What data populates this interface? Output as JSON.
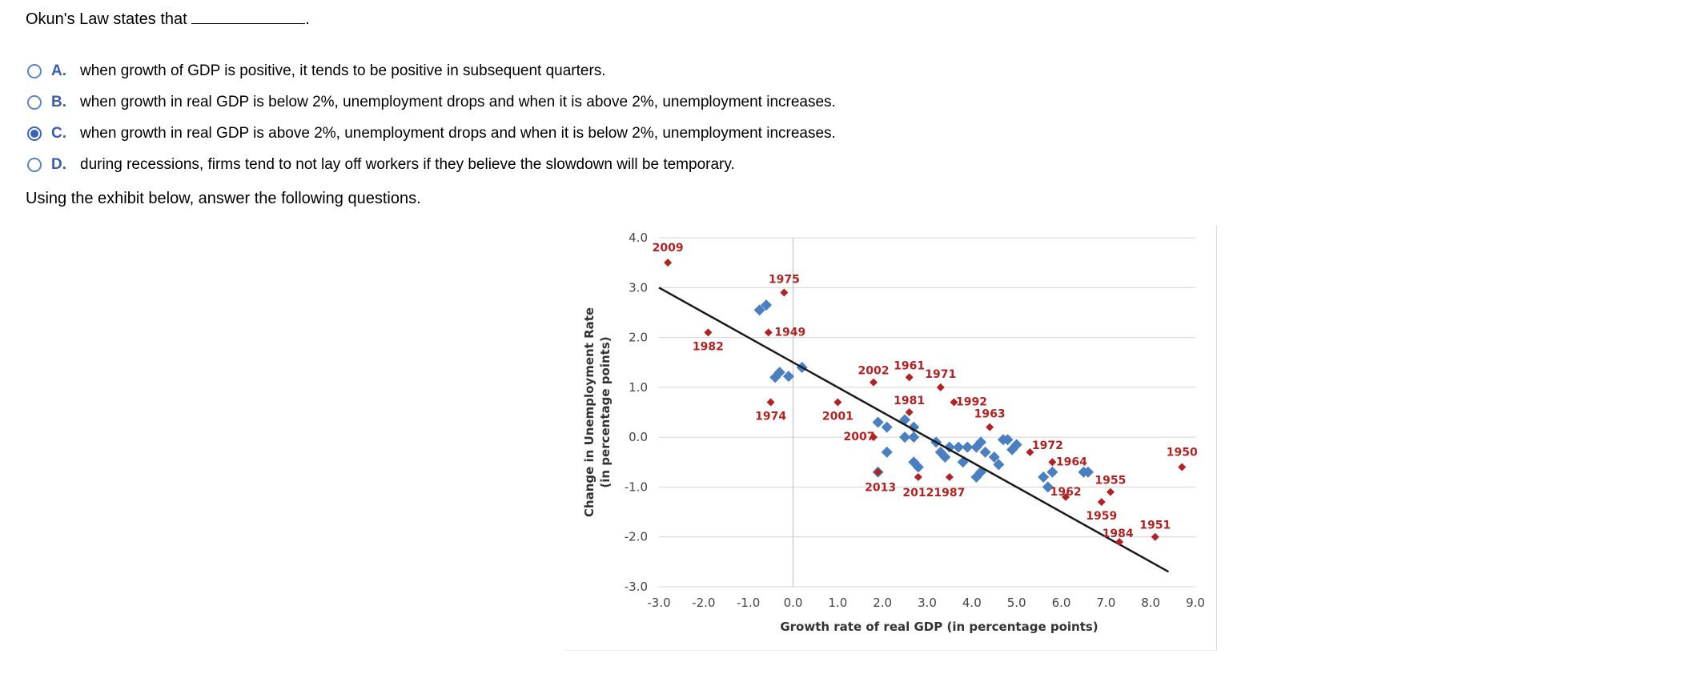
{
  "question": {
    "text": "Okun's Law states that",
    "end": "."
  },
  "options": [
    {
      "letter": "A.",
      "text": "when growth of GDP is positive, it tends to be positive in subsequent quarters.",
      "selected": false
    },
    {
      "letter": "B.",
      "text": "when growth in real GDP is below 2%, unemployment drops and when it is above 2%, unemployment increases.",
      "selected": false
    },
    {
      "letter": "C.",
      "text": "when growth in real GDP is above 2%, unemployment drops and when it is below 2%, unemployment increases.",
      "selected": true
    },
    {
      "letter": "D.",
      "text": "during recessions, firms tend to not lay off workers if they believe the slowdown will be temporary.",
      "selected": false
    }
  ],
  "instruction": "Using the exhibit below, answer the following questions.",
  "chart_data": {
    "type": "scatter",
    "xlabel": "Growth rate of real GDP (in percentage points)",
    "ylabel": [
      "Change in Unemployment Rate",
      "(in percentage points)"
    ],
    "xlim": [
      -3,
      9
    ],
    "ylim": [
      -3,
      4
    ],
    "x_ticks": [
      "-3.0",
      "-2.0",
      "-1.0",
      "0.0",
      "1.0",
      "2.0",
      "3.0",
      "4.0",
      "5.0",
      "6.0",
      "7.0",
      "8.0",
      "9.0"
    ],
    "y_ticks": [
      "4.0",
      "3.0",
      "2.0",
      "1.0",
      "0.0",
      "-1.0",
      "-2.0",
      "-3.0"
    ],
    "grid": "horizontal",
    "colors": {
      "labeled": "#b22222",
      "unlabeled": "#4a7fc1",
      "trend": "#1a1a1a"
    },
    "trend_line": [
      [
        -3.0,
        3.0
      ],
      [
        8.4,
        -2.7
      ]
    ],
    "labeled_points": [
      {
        "label": "2009",
        "x": -2.8,
        "y": 3.5
      },
      {
        "label": "1975",
        "x": -0.2,
        "y": 2.9
      },
      {
        "label": "1949",
        "x": -0.55,
        "y": 2.1
      },
      {
        "label": "1982",
        "x": -1.9,
        "y": 2.1
      },
      {
        "label": "1974",
        "x": -0.5,
        "y": 0.7
      },
      {
        "label": "2001",
        "x": 1.0,
        "y": 0.7
      },
      {
        "label": "2002",
        "x": 1.8,
        "y": 1.1
      },
      {
        "label": "1961",
        "x": 2.6,
        "y": 1.2
      },
      {
        "label": "1971",
        "x": 3.3,
        "y": 1.0
      },
      {
        "label": "1981",
        "x": 2.6,
        "y": 0.5
      },
      {
        "label": "1992",
        "x": 3.6,
        "y": 0.7
      },
      {
        "label": "1963",
        "x": 4.4,
        "y": 0.2
      },
      {
        "label": "2007",
        "x": 1.8,
        "y": 0.0
      },
      {
        "label": "2013",
        "x": 1.9,
        "y": -0.7
      },
      {
        "label": "2012",
        "x": 2.8,
        "y": -0.8
      },
      {
        "label": "1987",
        "x": 3.5,
        "y": -0.8
      },
      {
        "label": "1972",
        "x": 5.3,
        "y": -0.3
      },
      {
        "label": "1964",
        "x": 5.8,
        "y": -0.5
      },
      {
        "label": "1962",
        "x": 6.1,
        "y": -1.2
      },
      {
        "label": "1955",
        "x": 7.1,
        "y": -1.1
      },
      {
        "label": "1959",
        "x": 6.9,
        "y": -1.3
      },
      {
        "label": "1984",
        "x": 7.3,
        "y": -2.1
      },
      {
        "label": "1951",
        "x": 8.1,
        "y": -2.0
      },
      {
        "label": "1950",
        "x": 8.7,
        "y": -0.6
      }
    ],
    "unlabeled_points": [
      [
        -0.75,
        2.55
      ],
      [
        -0.6,
        2.65
      ],
      [
        -0.3,
        1.3
      ],
      [
        -0.4,
        1.2
      ],
      [
        -0.1,
        1.22
      ],
      [
        0.2,
        1.4
      ],
      [
        1.9,
        0.3
      ],
      [
        2.1,
        0.2
      ],
      [
        2.5,
        0.35
      ],
      [
        2.7,
        0.2
      ],
      [
        2.5,
        0.0
      ],
      [
        2.7,
        0.0
      ],
      [
        2.1,
        -0.3
      ],
      [
        2.7,
        -0.5
      ],
      [
        2.8,
        -0.6
      ],
      [
        3.2,
        -0.1
      ],
      [
        3.3,
        -0.3
      ],
      [
        3.4,
        -0.4
      ],
      [
        3.5,
        -0.2
      ],
      [
        3.7,
        -0.2
      ],
      [
        3.9,
        -0.2
      ],
      [
        3.8,
        -0.5
      ],
      [
        4.1,
        -0.2
      ],
      [
        4.2,
        -0.1
      ],
      [
        4.3,
        -0.3
      ],
      [
        4.5,
        -0.4
      ],
      [
        4.6,
        -0.55
      ],
      [
        4.7,
        -0.05
      ],
      [
        4.8,
        -0.05
      ],
      [
        4.9,
        -0.25
      ],
      [
        5.0,
        -0.15
      ],
      [
        4.1,
        -0.8
      ],
      [
        4.2,
        -0.7
      ],
      [
        5.6,
        -0.8
      ],
      [
        5.8,
        -0.7
      ],
      [
        5.7,
        -1.0
      ],
      [
        6.5,
        -0.7
      ],
      [
        6.6,
        -0.7
      ],
      [
        1.9,
        -0.7
      ]
    ]
  }
}
